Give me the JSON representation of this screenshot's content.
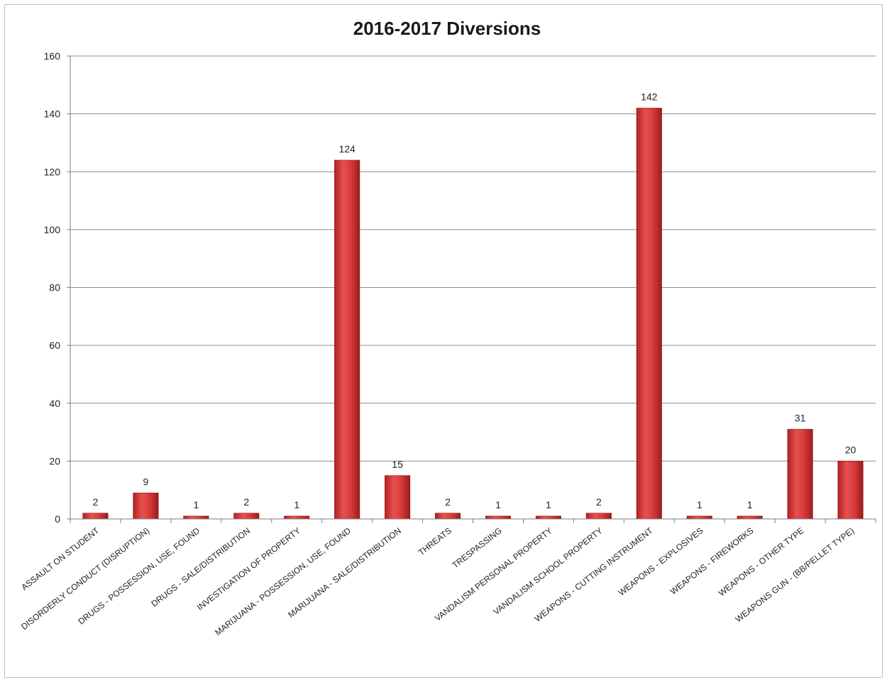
{
  "chart_data": {
    "type": "bar",
    "title": "2016-2017 Diversions",
    "xlabel": "",
    "ylabel": "",
    "ylim": [
      0,
      160
    ],
    "yticks": [
      0,
      20,
      40,
      60,
      80,
      100,
      120,
      140,
      160
    ],
    "grid": true,
    "legend": "none",
    "bar_color": "#d83a3a",
    "categories": [
      "ASSAULT ON STUDENT",
      "DISORDERLY CONDUCT (DISRUPTION)",
      "DRUGS - POSSESSION, USE, FOUND",
      "DRUGS - SALE/DISTRIBUTION",
      "INVESTIGATION OF PROPERTY",
      "MARIJUANA - POSSESSION, USE, FOUND",
      "MARIJUANA - SALE/DISTRIBUTION",
      "THREATS",
      "TRESPASSING",
      "VANDALISM PERSONAL PROPERTY",
      "VANDALISM SCHOOL PROPERTY",
      "WEAPONS - CUTTING INSTRUMENT",
      "WEAPONS - EXPLOSIVES",
      "WEAPONS - FIREWORKS",
      "WEAPONS - OTHER TYPE",
      "WEAPONS GUN - (BB/PELLET TYPE)"
    ],
    "values": [
      2,
      9,
      1,
      2,
      1,
      124,
      15,
      2,
      1,
      1,
      2,
      142,
      1,
      1,
      31,
      20
    ]
  }
}
